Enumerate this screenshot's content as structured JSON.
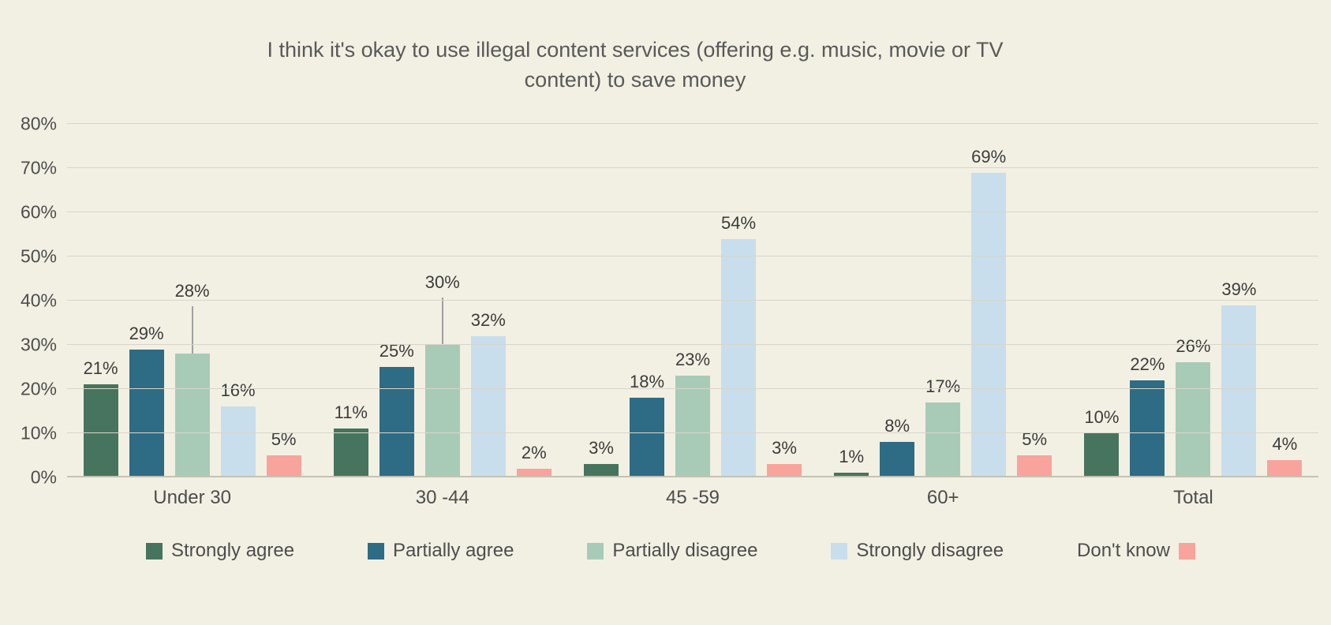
{
  "chart_data": {
    "type": "bar",
    "title": "I think it's okay to use illegal content services (offering e.g. music, movie or TV content) to save money",
    "title_lines": [
      "I think it's okay to use illegal content services (offering e.g. music, movie or TV",
      "content) to save money"
    ],
    "categories": [
      "Under 30",
      "30 -44",
      "45 -59",
      "60+",
      "Total"
    ],
    "series": [
      {
        "name": "Strongly agree",
        "color": "#47745E",
        "values": [
          21,
          11,
          3,
          1,
          10
        ]
      },
      {
        "name": "Partially agree",
        "color": "#2E6B85",
        "values": [
          29,
          25,
          18,
          8,
          22
        ]
      },
      {
        "name": "Partially disagree",
        "color": "#A8CBB8",
        "values": [
          28,
          30,
          23,
          17,
          26
        ]
      },
      {
        "name": "Strongly disagree",
        "color": "#C8DEEC",
        "values": [
          16,
          32,
          54,
          69,
          39
        ]
      },
      {
        "name": "Don't know",
        "color": "#F8A49C",
        "values": [
          5,
          2,
          3,
          5,
          4
        ],
        "legend_swatch_after_label": true
      }
    ],
    "data_label_suffix": "%",
    "y_axis": {
      "min": 0,
      "max": 80,
      "step": 10,
      "tick_labels": [
        "0%",
        "10%",
        "20%",
        "30%",
        "40%",
        "50%",
        "60%",
        "70%",
        "80%"
      ]
    },
    "xlabel": "",
    "ylabel": "",
    "grid": true,
    "legend_position": "bottom",
    "label_leader_lines": [
      {
        "category": "Under 30",
        "series": "Partially disagree"
      },
      {
        "category": "30 -44",
        "series": "Partially disagree"
      }
    ]
  },
  "colors": {
    "background": "#F2F0E3",
    "gridline": "#D8D6CA",
    "axis_line": "#C4C2B4",
    "title_text": "#595959",
    "tick_text": "#4D4D4D",
    "data_label_text": "#3C3C3C",
    "leader_line": "#A0A0A0"
  }
}
